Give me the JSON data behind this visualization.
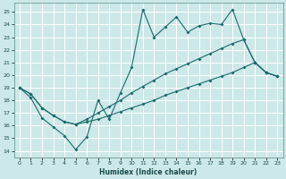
{
  "xlabel": "Humidex (Indice chaleur)",
  "ylabel": "",
  "bg_color": "#cde8e8",
  "grid_color": "#b0d0d0",
  "line_color": "#1a6b6b",
  "xlim": [
    -0.5,
    23.5
  ],
  "ylim": [
    13.5,
    25.7
  ],
  "xticks": [
    0,
    1,
    2,
    3,
    4,
    5,
    6,
    7,
    8,
    9,
    10,
    11,
    12,
    13,
    14,
    15,
    16,
    17,
    18,
    19,
    20,
    21,
    22,
    23
  ],
  "yticks": [
    14,
    15,
    16,
    17,
    18,
    19,
    20,
    21,
    22,
    23,
    24,
    25
  ],
  "line1_x": [
    0,
    1,
    2,
    3,
    4,
    5,
    6,
    7,
    8,
    9,
    10,
    11,
    12,
    13,
    14,
    15,
    16,
    17,
    18,
    19,
    20,
    21,
    22,
    23
  ],
  "line1_y": [
    19.0,
    18.2,
    16.6,
    15.9,
    15.2,
    14.1,
    15.1,
    18.0,
    16.5,
    18.6,
    20.6,
    25.2,
    23.0,
    23.8,
    24.6,
    23.4,
    23.9,
    24.1,
    24.0,
    25.2,
    22.8,
    21.0,
    20.2,
    19.9
  ],
  "line2_x": [
    0,
    1,
    2,
    3,
    4,
    5,
    6,
    7,
    8,
    9,
    10,
    11,
    12,
    13,
    14,
    15,
    16,
    17,
    18,
    19,
    20,
    21,
    22,
    23
  ],
  "line2_y": [
    19.0,
    18.5,
    17.4,
    16.8,
    16.3,
    16.1,
    16.5,
    17.0,
    17.5,
    18.0,
    18.6,
    19.1,
    19.6,
    20.1,
    20.5,
    20.9,
    21.3,
    21.7,
    22.1,
    22.5,
    22.8,
    21.0,
    20.2,
    19.9
  ],
  "line3_x": [
    0,
    1,
    2,
    3,
    4,
    5,
    6,
    7,
    8,
    9,
    10,
    11,
    12,
    13,
    14,
    15,
    16,
    17,
    18,
    19,
    20,
    21,
    22,
    23
  ],
  "line3_y": [
    19.0,
    18.5,
    17.4,
    16.8,
    16.3,
    16.1,
    16.3,
    16.5,
    16.8,
    17.1,
    17.4,
    17.7,
    18.0,
    18.4,
    18.7,
    19.0,
    19.3,
    19.6,
    19.9,
    20.2,
    20.6,
    21.0,
    20.2,
    19.9
  ]
}
